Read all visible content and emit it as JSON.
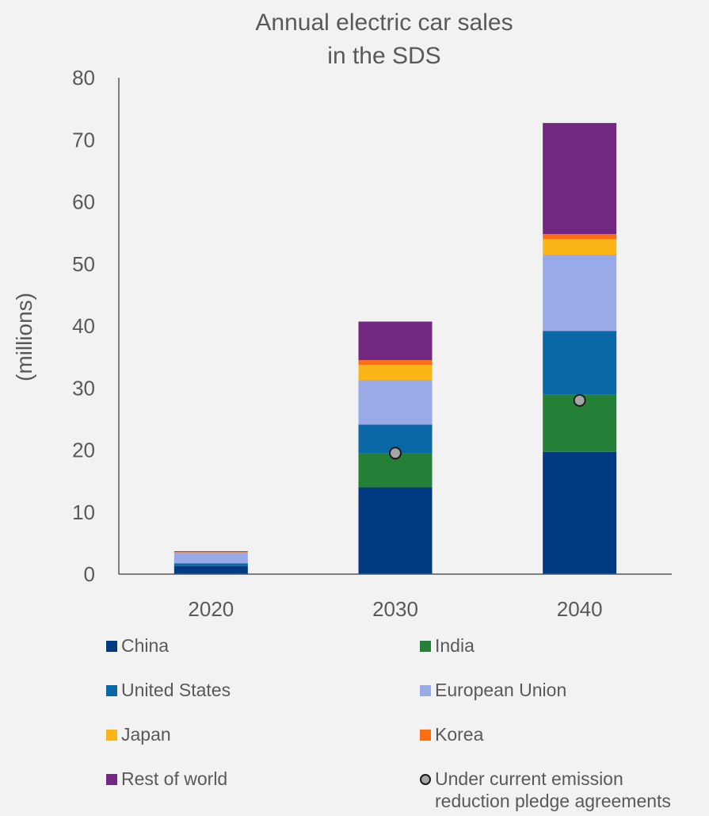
{
  "chart_data": {
    "type": "bar",
    "stacked": true,
    "title": "Annual electric car sales in the SDS",
    "title_lines": [
      "Annual electric car sales",
      "in the SDS"
    ],
    "ylabel": "(millions)",
    "xlabel": "",
    "ylim": [
      0,
      80
    ],
    "yticks": [
      "0",
      "10",
      "20",
      "30",
      "40",
      "50",
      "60",
      "70",
      "80"
    ],
    "categories": [
      "2020",
      "2030",
      "2040"
    ],
    "series": [
      {
        "name": "China",
        "color": "#003a80",
        "values": [
          1.3,
          14.0,
          19.7
        ]
      },
      {
        "name": "India",
        "color": "#238036",
        "values": [
          0.05,
          5.5,
          9.3
        ]
      },
      {
        "name": "United States",
        "color": "#0a68a6",
        "values": [
          0.4,
          4.6,
          10.2
        ]
      },
      {
        "name": "European Union",
        "color": "#99aae8",
        "values": [
          1.8,
          7.2,
          12.3
        ]
      },
      {
        "name": "Japan",
        "color": "#fbb516",
        "values": [
          0.03,
          2.4,
          2.5
        ]
      },
      {
        "name": "Korea",
        "color": "#fd6e12",
        "values": [
          0.02,
          0.8,
          0.8
        ]
      },
      {
        "name": "Rest of world",
        "color": "#722880",
        "values": [
          0.1,
          6.2,
          17.9
        ]
      }
    ],
    "markers": {
      "name": "Under current emission reduction pledge agreements",
      "name_lines": [
        "Under current emission",
        "reduction pledge agreements"
      ],
      "color": "#a6a6a6",
      "values": [
        null,
        19.5,
        28.0
      ]
    },
    "grid": false,
    "legend": "bottom"
  }
}
